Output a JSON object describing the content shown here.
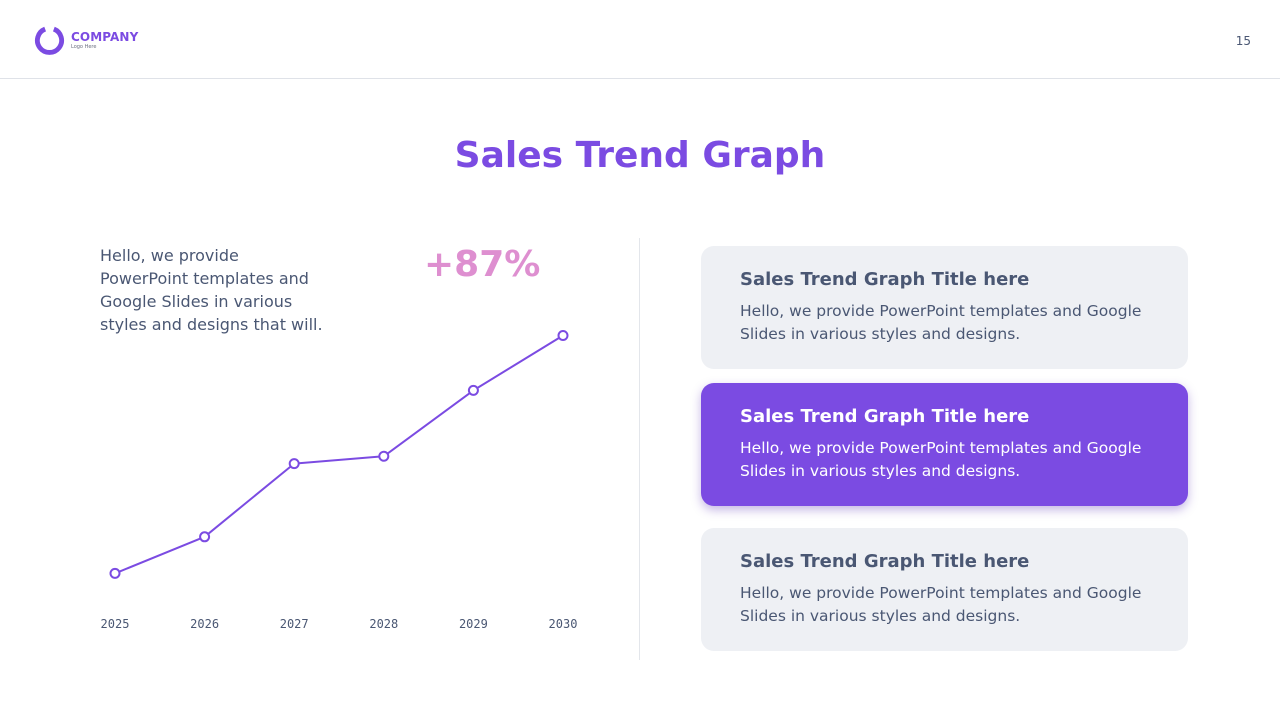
{
  "header": {
    "company_name": "COMPANY",
    "company_sub": "Logo Here",
    "page_number": "15"
  },
  "title": "Sales Trend Graph",
  "intro_text": "Hello, we provide PowerPoint templates and Google Slides in various styles and designs that will.",
  "highlight": "+87%",
  "colors": {
    "accent": "#7b4be2",
    "highlight": "#de8fd0",
    "text": "#4a5773",
    "card_bg": "#eef0f4"
  },
  "cards": [
    {
      "title": "Sales Trend Graph Title here",
      "body": "Hello, we provide PowerPoint templates and Google Slides in various styles and designs.",
      "active": false
    },
    {
      "title": "Sales Trend Graph Title here",
      "body": "Hello, we provide PowerPoint templates and Google Slides in various styles and designs.",
      "active": true
    },
    {
      "title": "Sales Trend Graph Title here",
      "body": "Hello, we provide PowerPoint templates and Google Slides in various styles and designs.",
      "active": false
    }
  ],
  "chart_data": {
    "type": "line",
    "categories": [
      "2025",
      "2026",
      "2027",
      "2028",
      "2029",
      "2030"
    ],
    "values": [
      10,
      20,
      40,
      42,
      60,
      75
    ],
    "ylim": [
      0,
      100
    ],
    "grid": false,
    "marker": "hollow-circle"
  }
}
